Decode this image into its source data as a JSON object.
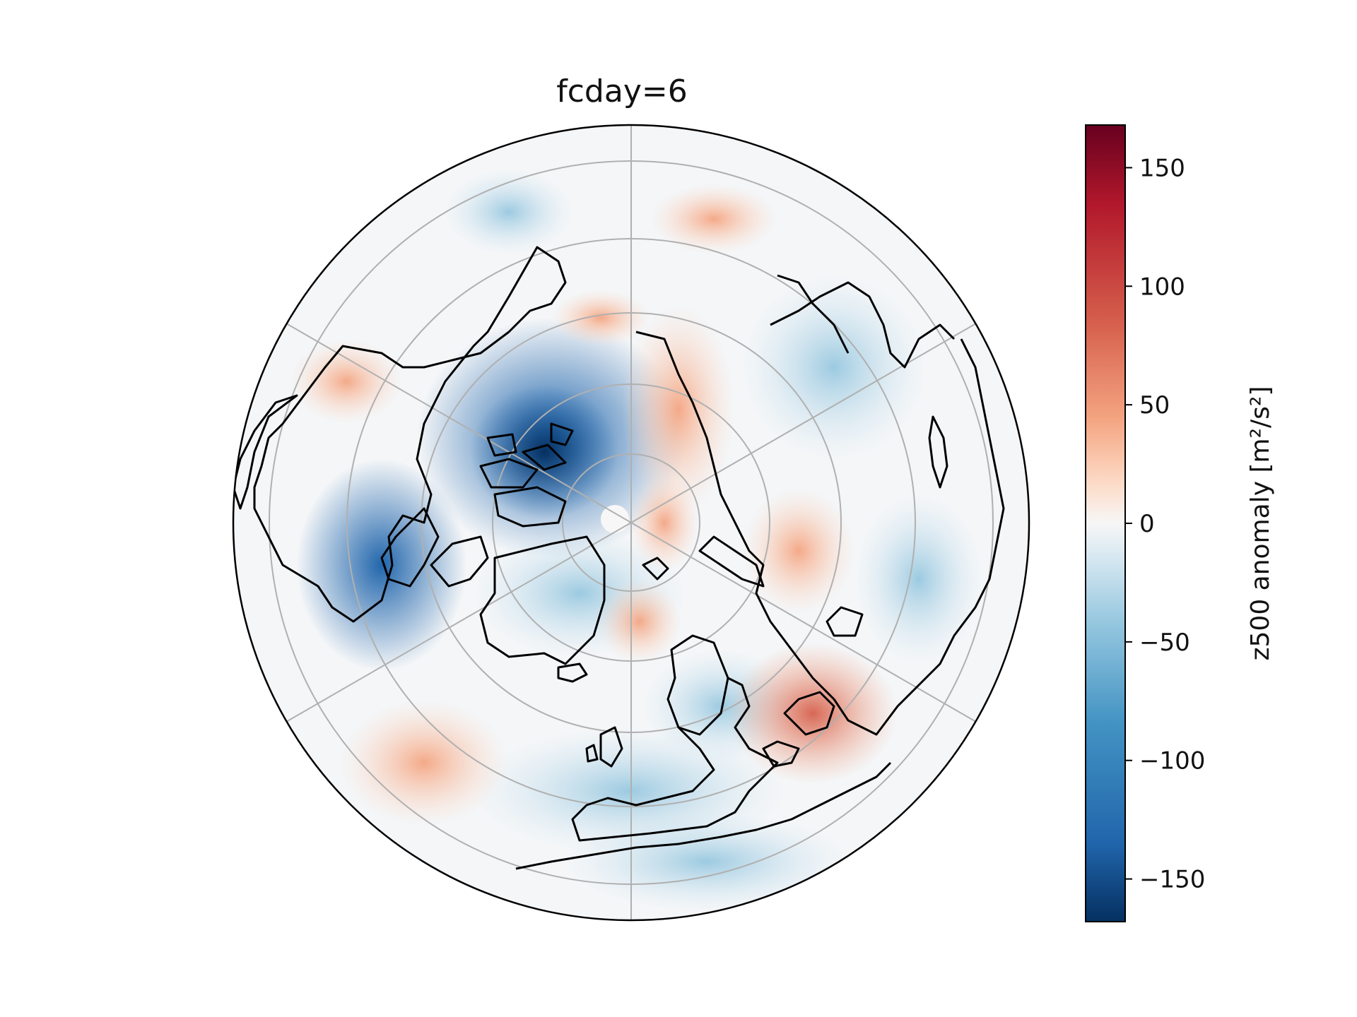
{
  "title": "fcday=6",
  "colorbar": {
    "label": "z500 anomaly [m²/s²]",
    "ticks": [
      "150",
      "100",
      "50",
      "0",
      "−50",
      "−100",
      "−150"
    ],
    "tick_values": [
      150,
      100,
      50,
      0,
      -50,
      -100,
      -150
    ],
    "range": [
      -168,
      168
    ],
    "colormap": "RdBu_r",
    "color_low": "#053061",
    "color_mid": "#f7f7f7",
    "color_high": "#67001f"
  },
  "map": {
    "projection": "north-polar-stereographic",
    "central_meridian": "0° at bottom",
    "gridlines": true,
    "coastlines": true,
    "anomaly_features": [
      {
        "region": "Canadian Arctic Archipelago",
        "sign": "negative",
        "magnitude": "strong"
      },
      {
        "region": "Hudson Bay / Labrador",
        "sign": "negative",
        "magnitude": "strong"
      },
      {
        "region": "North Atlantic / Europe",
        "sign": "negative",
        "magnitude": "moderate"
      },
      {
        "region": "Siberia / East Asia",
        "sign": "positive",
        "magnitude": "moderate"
      },
      {
        "region": "Central Asia / China",
        "sign": "positive",
        "magnitude": "strong"
      },
      {
        "region": "North Pacific",
        "sign": "positive",
        "magnitude": "weak"
      }
    ]
  }
}
